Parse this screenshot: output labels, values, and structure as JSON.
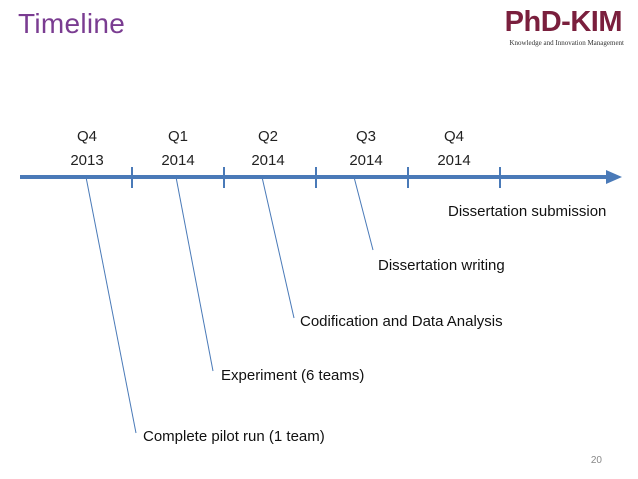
{
  "slide": {
    "title": "Timeline",
    "page_number": "20"
  },
  "logo": {
    "main": "PhD-KIM",
    "subtitle": "Knowledge and Innovation Management"
  },
  "timeline": {
    "ticks": [
      {
        "quarter": "Q4",
        "year": "2013"
      },
      {
        "quarter": "Q1",
        "year": "2014"
      },
      {
        "quarter": "Q2",
        "year": "2014"
      },
      {
        "quarter": "Q3",
        "year": "2014"
      },
      {
        "quarter": "Q4",
        "year": "2014"
      }
    ],
    "milestones": [
      {
        "label": "Dissertation submission"
      },
      {
        "label": "Dissertation writing"
      },
      {
        "label": "Codification and Data Analysis"
      },
      {
        "label": "Experiment (6 teams)"
      },
      {
        "label": "Complete pilot run (1 team)"
      }
    ],
    "colors": {
      "axis": "#4a7ab8",
      "connector": "#4a7ab8",
      "title": "#7a3c91"
    }
  }
}
